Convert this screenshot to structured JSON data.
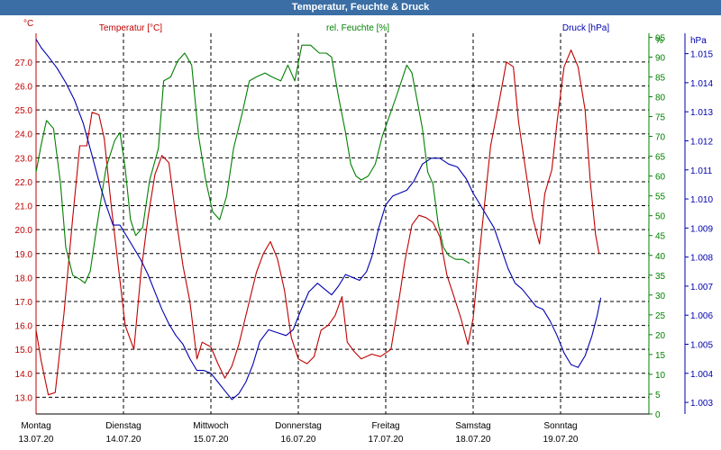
{
  "window": {
    "title": "Temperatur, Feuchte & Druck"
  },
  "chart_data": {
    "type": "line",
    "title": "Temperatur, Feuchte & Druck",
    "grid": true,
    "x": {
      "range": [
        0,
        7
      ],
      "ticks": [
        {
          "pos": 0,
          "day": "Montag",
          "date": "13.07.20"
        },
        {
          "pos": 1,
          "day": "Dienstag",
          "date": "14.07.20"
        },
        {
          "pos": 2,
          "day": "Mittwoch",
          "date": "15.07.20"
        },
        {
          "pos": 3,
          "day": "Donnerstag",
          "date": "16.07.20"
        },
        {
          "pos": 4,
          "day": "Freitag",
          "date": "17.07.20"
        },
        {
          "pos": 5,
          "day": "Samstag",
          "date": "18.07.20"
        },
        {
          "pos": 6,
          "day": "Sonntag",
          "date": "19.07.20"
        }
      ]
    },
    "axes": {
      "temperature": {
        "label": "Temperatur [°C]",
        "unit": "°C",
        "color": "#c00000",
        "range": [
          12.3,
          28.2
        ],
        "ticks": [
          "13.0",
          "14.0",
          "15.0",
          "16.0",
          "17.0",
          "18.0",
          "19.0",
          "20.0",
          "21.0",
          "22.0",
          "23.0",
          "24.0",
          "25.0",
          "26.0",
          "27.0"
        ]
      },
      "humidity": {
        "label": "rel. Feuchte [%]",
        "unit": "%",
        "color": "#008000",
        "range": [
          0,
          96
        ],
        "ticks": [
          "0",
          "5",
          "10",
          "15",
          "20",
          "25",
          "30",
          "35",
          "40",
          "45",
          "50",
          "55",
          "60",
          "65",
          "70",
          "75",
          "80",
          "85",
          "90",
          "95"
        ]
      },
      "pressure": {
        "label": "Druck [hPa]",
        "unit": "hPa",
        "color": "#0000b0",
        "range": [
          1002.6,
          1015.7
        ],
        "ticks": [
          "1.003",
          "1.004",
          "1.005",
          "1.006",
          "1.007",
          "1.008",
          "1.009",
          "1.010",
          "1.011",
          "1.012",
          "1.013",
          "1.014",
          "1.015"
        ]
      }
    },
    "series": [
      {
        "name": "Temperatur [°C]",
        "axis": "temperature",
        "color": "#c00000",
        "points": [
          [
            0,
            15.8
          ],
          [
            0.06,
            14.5
          ],
          [
            0.14,
            13.1
          ],
          [
            0.22,
            13.2
          ],
          [
            0.32,
            16.5
          ],
          [
            0.42,
            20.5
          ],
          [
            0.5,
            23.5
          ],
          [
            0.58,
            23.5
          ],
          [
            0.64,
            24.9
          ],
          [
            0.72,
            24.8
          ],
          [
            0.78,
            23.8
          ],
          [
            0.86,
            21
          ],
          [
            0.94,
            18.5
          ],
          [
            1.02,
            16
          ],
          [
            1.12,
            15
          ],
          [
            1.2,
            18.2
          ],
          [
            1.28,
            20.5
          ],
          [
            1.36,
            22.3
          ],
          [
            1.44,
            23.1
          ],
          [
            1.52,
            22.8
          ],
          [
            1.6,
            20.5
          ],
          [
            1.68,
            18.5
          ],
          [
            1.76,
            17
          ],
          [
            1.84,
            14.6
          ],
          [
            1.9,
            15.3
          ],
          [
            2,
            15.1
          ],
          [
            2.08,
            14.4
          ],
          [
            2.16,
            13.8
          ],
          [
            2.24,
            14.3
          ],
          [
            2.32,
            15.2
          ],
          [
            2.42,
            16.7
          ],
          [
            2.52,
            18.2
          ],
          [
            2.6,
            19
          ],
          [
            2.68,
            19.5
          ],
          [
            2.76,
            18.8
          ],
          [
            2.84,
            17.5
          ],
          [
            2.92,
            15.5
          ],
          [
            3,
            14.6
          ],
          [
            3.1,
            14.4
          ],
          [
            3.18,
            14.7
          ],
          [
            3.26,
            15.8
          ],
          [
            3.34,
            16
          ],
          [
            3.42,
            16.4
          ],
          [
            3.5,
            17.2
          ],
          [
            3.56,
            15.3
          ],
          [
            3.64,
            14.9
          ],
          [
            3.72,
            14.6
          ],
          [
            3.84,
            14.8
          ],
          [
            3.94,
            14.7
          ],
          [
            4.06,
            15
          ],
          [
            4.14,
            16.8
          ],
          [
            4.22,
            18.7
          ],
          [
            4.3,
            20.2
          ],
          [
            4.38,
            20.6
          ],
          [
            4.46,
            20.5
          ],
          [
            4.54,
            20.3
          ],
          [
            4.62,
            19.7
          ],
          [
            4.7,
            18.1
          ],
          [
            4.78,
            17.2
          ],
          [
            4.86,
            16.3
          ],
          [
            4.94,
            15.2
          ],
          [
            5,
            16.3
          ],
          [
            5.1,
            20
          ],
          [
            5.2,
            23.5
          ],
          [
            5.3,
            25.4
          ],
          [
            5.38,
            27
          ],
          [
            5.46,
            26.8
          ],
          [
            5.52,
            24.5
          ],
          [
            5.6,
            22.5
          ],
          [
            5.68,
            20.5
          ],
          [
            5.76,
            19.4
          ],
          [
            5.82,
            21.5
          ],
          [
            5.9,
            22.5
          ],
          [
            5.96,
            24.5
          ],
          [
            6.04,
            26.8
          ],
          [
            6.12,
            27.5
          ],
          [
            6.2,
            26.8
          ],
          [
            6.28,
            25
          ],
          [
            6.34,
            22
          ],
          [
            6.4,
            19.8
          ],
          [
            6.44,
            19
          ]
        ]
      },
      {
        "name": "rel. Feuchte [%]",
        "axis": "humidity",
        "color": "#008000",
        "points": [
          [
            0,
            61
          ],
          [
            0.06,
            68
          ],
          [
            0.12,
            74
          ],
          [
            0.2,
            72
          ],
          [
            0.28,
            58
          ],
          [
            0.34,
            42
          ],
          [
            0.42,
            35
          ],
          [
            0.5,
            34
          ],
          [
            0.56,
            33
          ],
          [
            0.62,
            36
          ],
          [
            0.7,
            48
          ],
          [
            0.8,
            62
          ],
          [
            0.9,
            69
          ],
          [
            0.96,
            71
          ],
          [
            1.02,
            62
          ],
          [
            1.08,
            49
          ],
          [
            1.14,
            45
          ],
          [
            1.22,
            47
          ],
          [
            1.3,
            59
          ],
          [
            1.4,
            67
          ],
          [
            1.46,
            84
          ],
          [
            1.54,
            85
          ],
          [
            1.62,
            89
          ],
          [
            1.7,
            91
          ],
          [
            1.78,
            88
          ],
          [
            1.86,
            70
          ],
          [
            1.94,
            59
          ],
          [
            2.02,
            51
          ],
          [
            2.1,
            49
          ],
          [
            2.18,
            55
          ],
          [
            2.26,
            67
          ],
          [
            2.36,
            76
          ],
          [
            2.44,
            84
          ],
          [
            2.52,
            85
          ],
          [
            2.62,
            86
          ],
          [
            2.7,
            85
          ],
          [
            2.8,
            84
          ],
          [
            2.88,
            88
          ],
          [
            2.96,
            84
          ],
          [
            3.04,
            93
          ],
          [
            3.14,
            93
          ],
          [
            3.24,
            91
          ],
          [
            3.32,
            91
          ],
          [
            3.38,
            90
          ],
          [
            3.46,
            80
          ],
          [
            3.54,
            71
          ],
          [
            3.6,
            63
          ],
          [
            3.66,
            60
          ],
          [
            3.72,
            59
          ],
          [
            3.8,
            60
          ],
          [
            3.88,
            63
          ],
          [
            3.96,
            70
          ],
          [
            4.04,
            75
          ],
          [
            4.12,
            80
          ],
          [
            4.18,
            84
          ],
          [
            4.24,
            88
          ],
          [
            4.3,
            86
          ],
          [
            4.36,
            79
          ],
          [
            4.42,
            72
          ],
          [
            4.48,
            61
          ],
          [
            4.54,
            58
          ],
          [
            4.6,
            48
          ],
          [
            4.66,
            42
          ],
          [
            4.72,
            40
          ],
          [
            4.8,
            39
          ],
          [
            4.88,
            39
          ],
          [
            4.96,
            38
          ]
        ]
      },
      {
        "name": "Druck [hPa]",
        "axis": "pressure",
        "color": "#0000b0",
        "points": [
          [
            0,
            1015.5
          ],
          [
            0.06,
            1015.2
          ],
          [
            0.14,
            1014.9
          ],
          [
            0.24,
            1014.5
          ],
          [
            0.34,
            1014
          ],
          [
            0.44,
            1013.4
          ],
          [
            0.54,
            1012.6
          ],
          [
            0.64,
            1011.5
          ],
          [
            0.72,
            1010.6
          ],
          [
            0.8,
            1009.8
          ],
          [
            0.88,
            1009.1
          ],
          [
            0.96,
            1009.1
          ],
          [
            1.04,
            1008.7
          ],
          [
            1.12,
            1008.3
          ],
          [
            1.2,
            1007.9
          ],
          [
            1.28,
            1007.4
          ],
          [
            1.36,
            1006.8
          ],
          [
            1.44,
            1006.2
          ],
          [
            1.52,
            1005.7
          ],
          [
            1.6,
            1005.3
          ],
          [
            1.68,
            1005
          ],
          [
            1.76,
            1004.5
          ],
          [
            1.84,
            1004.1
          ],
          [
            1.92,
            1004.1
          ],
          [
            2,
            1004
          ],
          [
            2.08,
            1003.7
          ],
          [
            2.16,
            1003.4
          ],
          [
            2.24,
            1003.1
          ],
          [
            2.32,
            1003.3
          ],
          [
            2.4,
            1003.7
          ],
          [
            2.48,
            1004.3
          ],
          [
            2.56,
            1005.1
          ],
          [
            2.66,
            1005.5
          ],
          [
            2.76,
            1005.4
          ],
          [
            2.86,
            1005.3
          ],
          [
            2.94,
            1005.5
          ],
          [
            3.02,
            1006.1
          ],
          [
            3.12,
            1006.8
          ],
          [
            3.22,
            1007.1
          ],
          [
            3.3,
            1006.9
          ],
          [
            3.38,
            1006.7
          ],
          [
            3.46,
            1007
          ],
          [
            3.54,
            1007.4
          ],
          [
            3.62,
            1007.3
          ],
          [
            3.7,
            1007.2
          ],
          [
            3.78,
            1007.5
          ],
          [
            3.84,
            1008
          ],
          [
            3.92,
            1009
          ],
          [
            4,
            1009.8
          ],
          [
            4.08,
            1010.1
          ],
          [
            4.16,
            1010.2
          ],
          [
            4.24,
            1010.3
          ],
          [
            4.32,
            1010.6
          ],
          [
            4.42,
            1011.2
          ],
          [
            4.52,
            1011.4
          ],
          [
            4.62,
            1011.4
          ],
          [
            4.72,
            1011.2
          ],
          [
            4.82,
            1011.1
          ],
          [
            4.92,
            1010.7
          ],
          [
            5,
            1010.2
          ],
          [
            5.08,
            1009.8
          ],
          [
            5.16,
            1009.4
          ],
          [
            5.24,
            1009
          ],
          [
            5.32,
            1008.3
          ],
          [
            5.4,
            1007.6
          ],
          [
            5.48,
            1007.1
          ],
          [
            5.56,
            1006.9
          ],
          [
            5.64,
            1006.6
          ],
          [
            5.72,
            1006.3
          ],
          [
            5.8,
            1006.2
          ],
          [
            5.88,
            1005.8
          ],
          [
            5.96,
            1005.3
          ],
          [
            6.04,
            1004.7
          ],
          [
            6.12,
            1004.3
          ],
          [
            6.2,
            1004.2
          ],
          [
            6.28,
            1004.6
          ],
          [
            6.36,
            1005.3
          ],
          [
            6.42,
            1006
          ],
          [
            6.46,
            1006.6
          ]
        ]
      }
    ]
  }
}
